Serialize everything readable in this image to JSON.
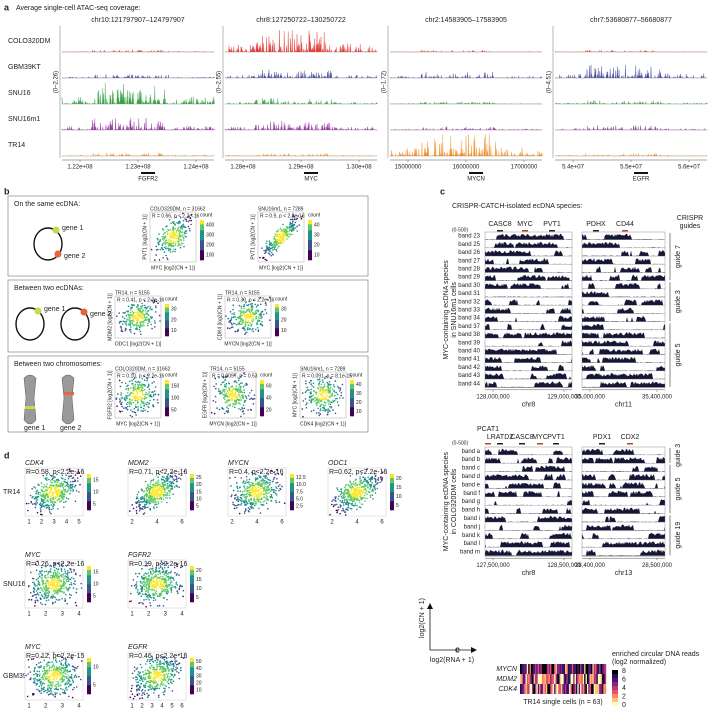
{
  "panel_a": {
    "label": "a",
    "title": "Average single-cell ATAC-seq coverage:",
    "samples": [
      "COLO320DM",
      "GBM39KT",
      "SNU16",
      "SNU16m1",
      "TR14"
    ],
    "regions": [
      {
        "coord": "chr10:121797907–124797907",
        "scale": "(0–2.26)",
        "ticks": [
          "1.22e+08",
          "1.23e+08",
          "1.24e+08"
        ],
        "gene": "FGFR2"
      },
      {
        "coord": "chr8:127250722–130250722",
        "scale": "(0–2.55)",
        "ticks": [
          "1.28e+08",
          "1.29e+08",
          "1.30e+08"
        ],
        "gene": "MYC"
      },
      {
        "coord": "chr2:14583905–17583905",
        "scale": "(0–1.72)",
        "ticks": [
          "15000000",
          "16000000",
          "17000000"
        ],
        "gene": "MYCN"
      },
      {
        "coord": "chr7:53680877–56680877",
        "scale": "(0–4.51)",
        "ticks": [
          "5.4e+07",
          "5.5e+07",
          "5.6e+07"
        ],
        "gene": "EGFR"
      }
    ]
  },
  "panel_b": {
    "label": "b",
    "boxes": [
      {
        "title": "On the same ecDNA:",
        "gene1": "gene 1",
        "gene2": "gene 2",
        "plots": [
          {
            "title": "COLO320DM, n = 31662",
            "stat": "R = 0.66, p < 2.2e-16",
            "xlabel": "MYC [log2(CN + 1)]",
            "ylabel": "PVT1 [log2(CN + 1)]",
            "cbar_title": "count",
            "cbar": [
              "100",
              "200",
              "300",
              "400"
            ]
          },
          {
            "title": "SNU16m1, n = 7289",
            "stat": "R = 0.9, p < 2.2e-16",
            "xlabel": "MYC [log2(CN + 1)]",
            "ylabel": "PVT1 [log2(CN + 1)]",
            "cbar_title": "count",
            "cbar": [
              "10",
              "20",
              "30",
              "40"
            ]
          }
        ]
      },
      {
        "title": "Between two ecDNAs:",
        "gene1": "gene 1",
        "gene2": "gene 2",
        "plots": [
          {
            "title": "TR14, n = 5155",
            "stat": "R = 0.41, p < 2.2e-16",
            "xlabel": "ODC1 [log2(CN + 1)]",
            "ylabel": "MDM2 [log2(CN + 1)]",
            "cbar_title": "count",
            "cbar": [
              "10",
              "20",
              "30"
            ]
          },
          {
            "title": "TR14, n = 5155",
            "stat": "R = 0.30, p < 2.2e-16",
            "xlabel": "MYCN [log2(CN + 1)]",
            "ylabel": "CDK4 [log2(CN + 1)]",
            "cbar_title": "count",
            "cbar": [
              "10",
              "20",
              "30"
            ]
          }
        ]
      },
      {
        "title": "Between two chromosomes:",
        "gene1": "gene 1",
        "gene2": "gene 2",
        "plots": [
          {
            "title": "COLO320DM, n = 31662",
            "stat": "R = 0.10, p < 2.2e-16",
            "xlabel": "MYC [log2(CN + 1)]",
            "ylabel": "FGFR2 [log2(CN + 1)]",
            "cbar_title": "count",
            "cbar": [
              "50",
              "100",
              "150"
            ]
          },
          {
            "title": "TR14, n = 5155",
            "stat": "R = 0.0097, p = 0.53",
            "xlabel": "MYCN [log2(CN + 1)]",
            "ylabel": "EGFR [log2(CN + 1)]",
            "cbar_title": "count",
            "cbar": [
              "20",
              "40",
              "60"
            ]
          },
          {
            "title": "SNU16m1, n = 7289",
            "stat": "R = 0.091, p = 8.1e-15",
            "xlabel": "CDK4 [log2(CN + 1)]",
            "ylabel": "MYC [log2(CN + 1)]",
            "cbar_title": "count",
            "cbar": [
              "10",
              "20",
              "30",
              "40"
            ]
          }
        ]
      }
    ]
  },
  "panel_c": {
    "label": "c",
    "title": "CRISPR-CATCH-isolated ecDNA species:",
    "top": {
      "scale": "(0-500)",
      "genes": [
        {
          "name": "CASC8",
          "color": "#222222"
        },
        {
          "name": "MYC",
          "color": "#b5472f"
        },
        {
          "name": "PVT1",
          "color": "#222222"
        },
        {
          "name": "PDHX",
          "color": "#222222"
        },
        {
          "name": "CD44",
          "color": "#b5472f"
        }
      ],
      "guides_header": [
        "CRISPR",
        "guides"
      ],
      "ylabel": [
        "MYC-containing ecDNA species",
        "in SNU16m1 cells"
      ],
      "bands": [
        "band 23",
        "band 25",
        "band 26",
        "band 27",
        "band 28",
        "band 29",
        "band 30",
        "band 31",
        "band 32",
        "band 33",
        "band 34",
        "band 37",
        "band 38",
        "band 39",
        "band 40",
        "band 41",
        "band 42",
        "band 43",
        "band 44"
      ],
      "guides": [
        "guide 7",
        "guide 3",
        "guide 5"
      ],
      "left_ticks": [
        "128,000,000",
        "129,000,000"
      ],
      "right_ticks": [
        "35,000,000",
        "35,400,000"
      ],
      "left_chr": "chr8",
      "right_chr": "chr11"
    },
    "bottom": {
      "scale": "(0-500)",
      "genes": [
        {
          "name": "PCAT1",
          "color": "#b5472f"
        },
        {
          "name": "LRATD2",
          "color": "#222222"
        },
        {
          "name": "CASC8",
          "color": "#222222"
        },
        {
          "name": "MYC",
          "color": "#b5472f"
        },
        {
          "name": "PVT1",
          "color": "#222222"
        },
        {
          "name": "PDX1",
          "color": "#222222"
        },
        {
          "name": "CDX2",
          "color": "#b5472f"
        }
      ],
      "ylabel": [
        "MYC-containing ecDNA species",
        "in COLO320DM cells"
      ],
      "bands": [
        "band a",
        "band b",
        "band c",
        "band d",
        "band e",
        "band f",
        "band g",
        "band h",
        "band i",
        "band j",
        "band k",
        "band l",
        "band m"
      ],
      "guides": [
        "guide 3",
        "guide 5",
        "guide 19"
      ],
      "left_ticks": [
        "127,500,000",
        "128,500,000"
      ],
      "right_ticks": [
        "28,400,000",
        "28,500,000"
      ],
      "left_chr": "chr8",
      "right_chr": "chr13"
    }
  },
  "panel_d": {
    "label": "d",
    "ylabel": "log2(CN + 1)",
    "xlabel": "log2(RNA + 1)",
    "rows": [
      {
        "name": "TR14",
        "plots": [
          {
            "gene": "CDK4",
            "stat": "R=0.58, p<2.2e-16",
            "xticks": [
              "1",
              "2",
              "3",
              "4",
              "5"
            ],
            "cbar": [
              "5",
              "10",
              "15"
            ]
          },
          {
            "gene": "MDM2",
            "stat": "R=0.71, p<2.2e-16",
            "xticks": [
              "2",
              "4",
              "6"
            ],
            "cbar": [
              "5",
              "10",
              "15",
              "20",
              "25"
            ]
          },
          {
            "gene": "MYCN",
            "stat": "R=0.4, p<2.2e-16",
            "xticks": [
              "2",
              "4",
              "6"
            ],
            "cbar": [
              "2.5",
              "5.0",
              "7.5",
              "10.0",
              "12.5"
            ]
          },
          {
            "gene": "ODC1",
            "stat": "R=0.62, p<2.2e-16",
            "xticks": [
              "2",
              "4",
              "6"
            ],
            "cbar": [
              "5",
              "10",
              "15",
              "20"
            ]
          }
        ]
      },
      {
        "name": "SNU16m1",
        "plots": [
          {
            "gene": "MYC",
            "stat": "R=0.26, p<2.2e-16",
            "xticks": [
              "1",
              "2",
              "3",
              "4"
            ],
            "cbar": [
              "5",
              "10",
              "15"
            ]
          },
          {
            "gene": "FGFR2",
            "stat": "R=0.19, p<2.2e-16",
            "xticks": [
              "1",
              "2",
              "3",
              "4"
            ],
            "cbar": [
              "5",
              "10",
              "15",
              "20"
            ]
          }
        ]
      },
      {
        "name": "GBM39-KT",
        "plots": [
          {
            "gene": "MYC",
            "stat": "R=0.12, p=2.2e-15",
            "xticks": [
              "1",
              "2",
              "3",
              "4"
            ],
            "cbar": [
              "5",
              "10"
            ]
          },
          {
            "gene": "EGFR",
            "stat": "R=0.46, p<2.2e-16",
            "xticks": [
              "1",
              "2",
              "3",
              "4",
              "5",
              "6"
            ],
            "cbar": [
              "10",
              "20",
              "30",
              "40",
              "50"
            ]
          }
        ]
      }
    ]
  },
  "panel_e": {
    "label": "e",
    "genes": [
      "MYCN",
      "MDM2",
      "CDK4"
    ],
    "xlabel": "TR14 single cells (n = 63)",
    "legend_title": [
      "enriched circular DNA reads",
      "(log2 normalized)"
    ],
    "legend_ticks": [
      "8",
      "6",
      "4",
      "2",
      "0"
    ]
  }
}
